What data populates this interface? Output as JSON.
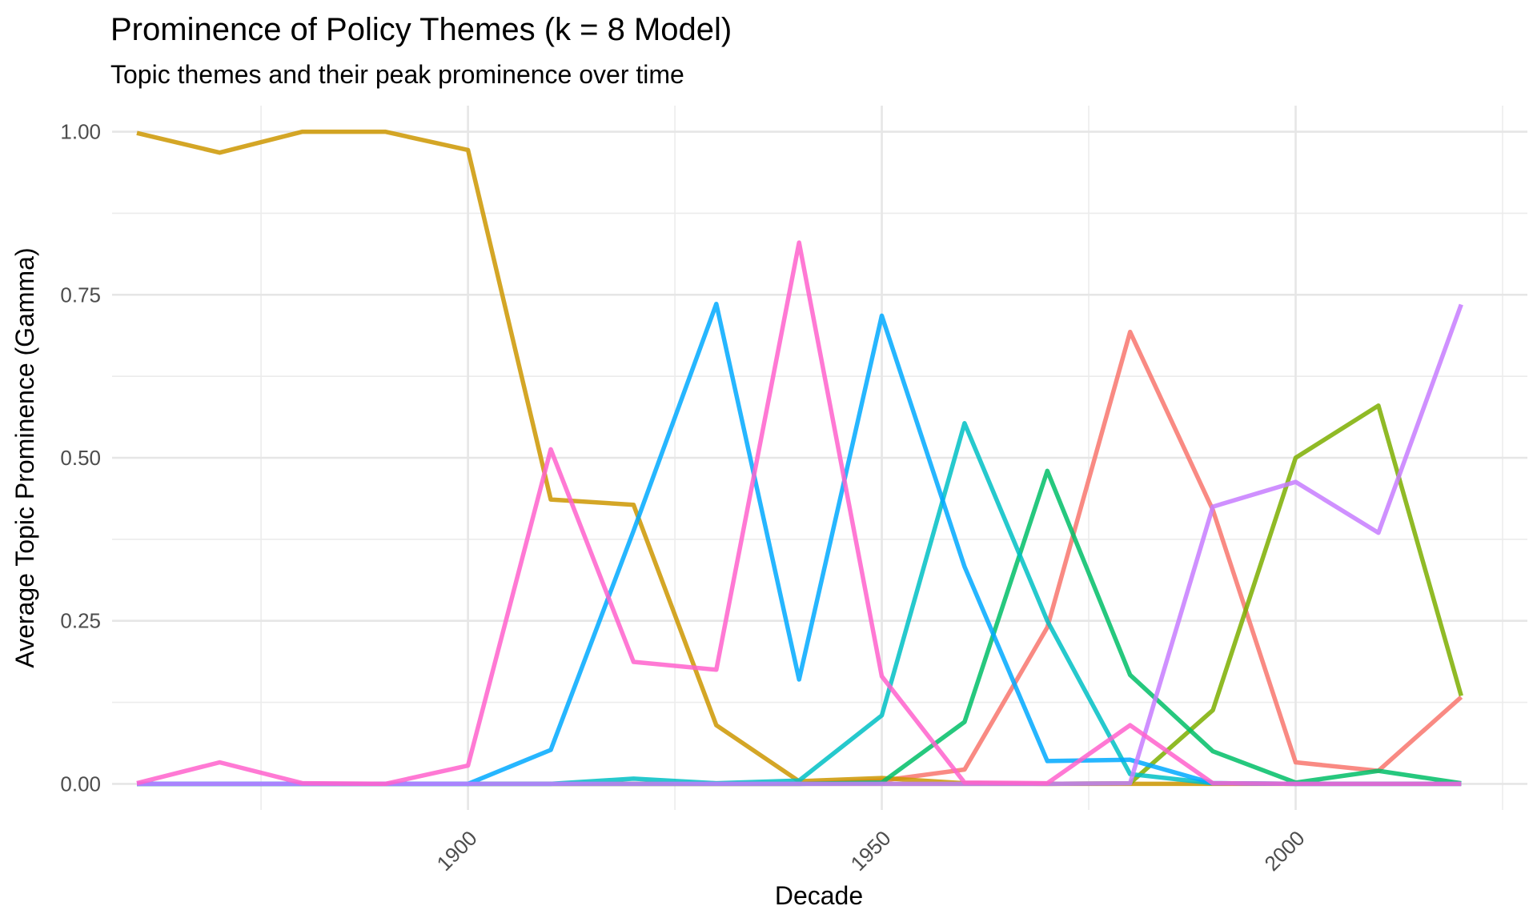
{
  "chart_data": {
    "type": "line",
    "title": "Prominence of Policy Themes (k = 8 Model)",
    "subtitle": "Topic themes and their peak prominence over time",
    "xlabel": "Decade",
    "ylabel": "Average Topic Prominence (Gamma)",
    "x": [
      1860,
      1870,
      1880,
      1890,
      1900,
      1910,
      1920,
      1930,
      1940,
      1950,
      1960,
      1970,
      1980,
      1990,
      2000,
      2010,
      2020
    ],
    "xlim": [
      1857,
      2028
    ],
    "ylim": [
      -0.04,
      1.04
    ],
    "x_ticks": [
      1900,
      1950,
      2000
    ],
    "x_tick_labels": [
      "1900",
      "1950",
      "2000"
    ],
    "x_minor": [
      1875,
      1925,
      1975,
      2025
    ],
    "y_ticks": [
      0,
      0.25,
      0.5,
      0.75,
      1.0
    ],
    "y_tick_labels": [
      "0.00",
      "0.25",
      "0.50",
      "0.75",
      "1.00"
    ],
    "y_minor": [
      0.125,
      0.375,
      0.625,
      0.875
    ],
    "grid": true,
    "legend": "none",
    "series": [
      {
        "color": "#F8766D",
        "values": [
          0,
          0,
          0,
          0,
          0,
          0,
          0,
          0,
          0,
          0.005,
          0.022,
          0.24,
          0.693,
          0.42,
          0.033,
          0.02,
          0.133
        ]
      },
      {
        "color": "#CD9600",
        "values": [
          0.998,
          0.968,
          1.0,
          1.0,
          0.972,
          0.436,
          0.428,
          0.09,
          0.004,
          0.009,
          0.001,
          0.0,
          0.0,
          0.0,
          0.0,
          0.0,
          0.0
        ]
      },
      {
        "color": "#7CAE00",
        "values": [
          0,
          0,
          0,
          0,
          0,
          0,
          0,
          0,
          0,
          0,
          0,
          0,
          0.001,
          0.113,
          0.5,
          0.58,
          0.135
        ]
      },
      {
        "color": "#00BE67",
        "values": [
          0,
          0,
          0,
          0,
          0,
          0,
          0,
          0,
          0,
          0.002,
          0.095,
          0.48,
          0.167,
          0.05,
          0.002,
          0.02,
          0.001
        ]
      },
      {
        "color": "#00BFC4",
        "values": [
          0,
          0,
          0,
          0,
          0,
          0,
          0.008,
          0.001,
          0.005,
          0.105,
          0.553,
          0.25,
          0.015,
          0.001,
          0,
          0,
          0
        ]
      },
      {
        "color": "#00A9FF",
        "values": [
          0,
          0,
          0,
          0,
          0,
          0.052,
          0.388,
          0.736,
          0.16,
          0.718,
          0.333,
          0.035,
          0.037,
          0.001,
          0,
          0,
          0
        ]
      },
      {
        "color": "#C77CFF",
        "values": [
          0,
          0,
          0,
          0,
          0,
          0,
          0,
          0,
          0,
          0,
          0,
          0,
          0.001,
          0.425,
          0.463,
          0.385,
          0.735
        ]
      },
      {
        "color": "#FF61CC",
        "values": [
          0.001,
          0.033,
          0.001,
          0.0,
          0.028,
          0.513,
          0.187,
          0.175,
          0.83,
          0.165,
          0.002,
          0.001,
          0.09,
          0.001,
          0.0,
          0.0,
          0.0
        ]
      }
    ]
  }
}
